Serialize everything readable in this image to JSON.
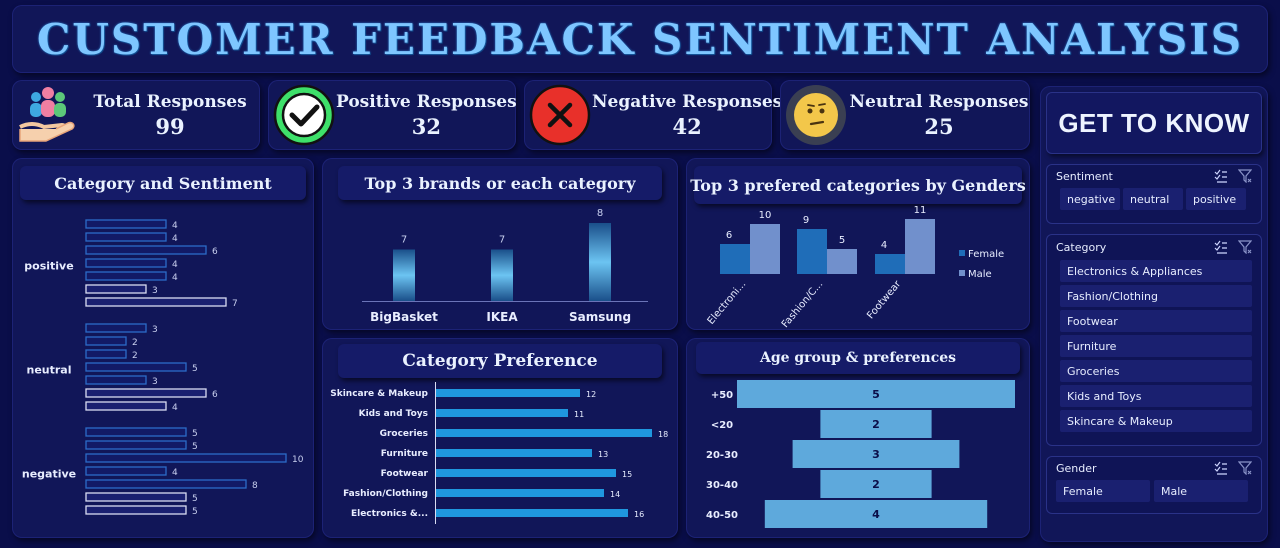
{
  "title": "CUSTOMER FEEDBACK SENTIMENT ANALYSIS",
  "kpis": {
    "total": {
      "label": "Total Responses",
      "value": "99",
      "icon": "people-in-hand-icon"
    },
    "positive": {
      "label": "Positive Responses",
      "value": "32",
      "icon": "check-icon",
      "color": "#3ee06a"
    },
    "negative": {
      "label": "Negative Responses",
      "value": "42",
      "icon": "x-icon",
      "color": "#e8302a"
    },
    "neutral": {
      "label": "Neutral Responses",
      "value": "25",
      "icon": "neutral-face-icon",
      "color": "#f3c74a"
    }
  },
  "chart_data": [
    {
      "id": "category_sentiment",
      "type": "bar",
      "orientation": "horizontal",
      "title": "Category and Sentiment",
      "groups": [
        {
          "name": "positive",
          "values": [
            4,
            4,
            6,
            4,
            4,
            3,
            7
          ]
        },
        {
          "name": "neutral",
          "values": [
            3,
            2,
            2,
            5,
            3,
            6,
            4
          ]
        },
        {
          "name": "negative",
          "values": [
            5,
            5,
            10,
            4,
            8,
            5,
            5
          ]
        }
      ],
      "xlim": [
        0,
        10
      ],
      "grid": false
    },
    {
      "id": "top_brands",
      "type": "bar",
      "title": "Top 3 brands or each category",
      "categories": [
        "BigBasket",
        "IKEA",
        "Samsung"
      ],
      "values": [
        7,
        7,
        8
      ],
      "ylim": [
        6,
        8
      ],
      "grid": false
    },
    {
      "id": "gender_categories",
      "type": "bar",
      "title": "Top 3 prefered categories by Genders",
      "categories": [
        "Electroni...",
        "Fashion/C...",
        "Footwear"
      ],
      "series": [
        {
          "name": "Female",
          "values": [
            6,
            9,
            4
          ],
          "color": "#1f6db8"
        },
        {
          "name": "Male",
          "values": [
            10,
            5,
            11
          ],
          "color": "#7190cc"
        }
      ],
      "ylim": [
        0,
        11
      ],
      "legend": "right",
      "grid": false
    },
    {
      "id": "category_preference",
      "type": "bar",
      "orientation": "horizontal",
      "title": "Category Preference",
      "categories": [
        "Skincare & Makeup",
        "Kids and Toys",
        "Groceries",
        "Furniture",
        "Footwear",
        "Fashion/Clothing",
        "Electronics &..."
      ],
      "values": [
        12,
        11,
        18,
        13,
        15,
        14,
        16
      ],
      "xlim": [
        0,
        18
      ],
      "grid": false
    },
    {
      "id": "age_group",
      "type": "bar",
      "orientation": "horizontal",
      "style": "funnel",
      "title": "Age group & preferences",
      "categories": [
        "+50",
        "<20",
        "20-30",
        "30-40",
        "40-50"
      ],
      "values": [
        5,
        2,
        3,
        2,
        4
      ],
      "xlim": [
        0,
        5
      ],
      "grid": false
    }
  ],
  "slicers": {
    "heading": "GET TO KNOW",
    "sentiment": {
      "title": "Sentiment",
      "items": [
        "negative",
        "neutral",
        "positive"
      ]
    },
    "category": {
      "title": "Category",
      "items": [
        "Electronics & Appliances",
        "Fashion/Clothing",
        "Footwear",
        "Furniture",
        "Groceries",
        "Kids and Toys",
        "Skincare & Makeup"
      ]
    },
    "gender": {
      "title": "Gender",
      "items": [
        "Female",
        "Male"
      ]
    }
  }
}
